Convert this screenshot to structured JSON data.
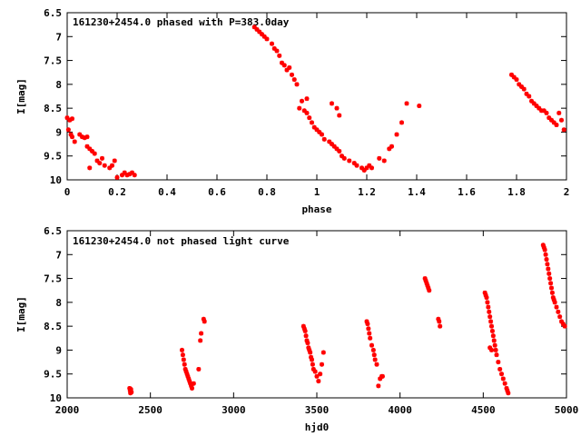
{
  "chart_data": [
    {
      "type": "scatter",
      "title": "161230+2454.0 phased with P=383.0day",
      "xlabel": "phase",
      "ylabel": "I[mag]",
      "xlim": [
        0,
        2
      ],
      "ylim": [
        6.5,
        10
      ],
      "y_inverted": true,
      "grid": false,
      "color": "#ff0000",
      "xticks": [
        "0",
        "0.2",
        "0.4",
        "0.6",
        "0.8",
        "1",
        "1.2",
        "1.4",
        "1.6",
        "1.8",
        "2"
      ],
      "yticks": [
        "6.5",
        "7",
        "7.5",
        "8",
        "8.5",
        "9",
        "9.5",
        "10"
      ],
      "series": [
        {
          "x": [
            0.0,
            0.01,
            0.02,
            0.005,
            0.015,
            0.02,
            0.03,
            0.05,
            0.06,
            0.07,
            0.08,
            0.09,
            0.1,
            0.11,
            0.12,
            0.09,
            0.13,
            0.15,
            0.17,
            0.19,
            0.2,
            0.22,
            0.23,
            0.24,
            0.25,
            0.26,
            0.27,
            0.08,
            0.14,
            0.18,
            0.75,
            0.76,
            0.77,
            0.78,
            0.79,
            0.8,
            0.82,
            0.83,
            0.84,
            0.85,
            0.86,
            0.87,
            0.88,
            0.89,
            0.9,
            0.91,
            0.92,
            0.93,
            0.95,
            0.96,
            0.97,
            0.98,
            0.99,
            1.0,
            1.01,
            1.02,
            1.03,
            1.05,
            1.06,
            1.07,
            1.08,
            1.09,
            1.1,
            1.11,
            1.13,
            1.15,
            1.16,
            1.18,
            1.19,
            1.2,
            1.21,
            1.22,
            1.25,
            1.27,
            1.29,
            1.3,
            1.32,
            1.34,
            1.36,
            1.41,
            0.94,
            0.96,
            1.06,
            1.08,
            1.09,
            1.78,
            1.79,
            1.8,
            1.81,
            1.82,
            1.83,
            1.84,
            1.85,
            1.86,
            1.87,
            1.88,
            1.89,
            1.9,
            1.91,
            1.92,
            1.93,
            1.94,
            1.95,
            1.96,
            1.97,
            1.98,
            1.99
          ],
          "y": [
            8.7,
            8.75,
            8.72,
            8.95,
            9.05,
            9.1,
            9.2,
            9.05,
            9.1,
            9.12,
            9.3,
            9.35,
            9.4,
            9.45,
            9.6,
            9.75,
            9.65,
            9.7,
            9.75,
            9.6,
            9.95,
            9.9,
            9.85,
            9.9,
            9.88,
            9.85,
            9.9,
            9.1,
            9.55,
            9.7,
            6.8,
            6.85,
            6.9,
            6.95,
            7.0,
            7.05,
            7.15,
            7.25,
            7.3,
            7.4,
            7.55,
            7.6,
            7.7,
            7.65,
            7.8,
            7.9,
            8.0,
            8.5,
            8.55,
            8.6,
            8.7,
            8.8,
            8.9,
            8.95,
            9.0,
            9.05,
            9.15,
            9.2,
            9.25,
            9.3,
            9.35,
            9.4,
            9.5,
            9.55,
            9.6,
            9.65,
            9.7,
            9.75,
            9.8,
            9.75,
            9.7,
            9.75,
            9.55,
            9.6,
            9.35,
            9.3,
            9.05,
            8.8,
            8.4,
            8.45,
            8.35,
            8.3,
            8.4,
            8.5,
            8.65,
            7.8,
            7.85,
            7.9,
            8.0,
            8.05,
            8.1,
            8.2,
            8.25,
            8.35,
            8.4,
            8.45,
            8.5,
            8.55,
            8.55,
            8.6,
            8.7,
            8.75,
            8.8,
            8.85,
            8.6,
            8.75,
            8.95
          ]
        }
      ]
    },
    {
      "type": "scatter",
      "title": "161230+2454.0 not phased light curve",
      "xlabel": "hjd0",
      "ylabel": "I[mag]",
      "xlim": [
        2000,
        5000
      ],
      "ylim": [
        6.5,
        10
      ],
      "y_inverted": true,
      "grid": false,
      "color": "#ff0000",
      "xticks": [
        "2000",
        "2500",
        "3000",
        "3500",
        "4000",
        "4500",
        "5000"
      ],
      "yticks": [
        "6.5",
        "7",
        "7.5",
        "8",
        "8.5",
        "9",
        "9.5",
        "10"
      ],
      "series": [
        {
          "x": [
            2375,
            2378,
            2380,
            2383,
            2386,
            2690,
            2695,
            2700,
            2705,
            2710,
            2715,
            2720,
            2725,
            2730,
            2735,
            2740,
            2745,
            2750,
            2760,
            2790,
            2800,
            2805,
            2820,
            2825,
            3420,
            3425,
            3430,
            3435,
            3440,
            3445,
            3450,
            3455,
            3460,
            3465,
            3470,
            3475,
            3480,
            3490,
            3500,
            3510,
            3520,
            3530,
            3540,
            3800,
            3805,
            3810,
            3815,
            3820,
            3830,
            3840,
            3845,
            3850,
            3860,
            3870,
            3880,
            3890,
            3895,
            4150,
            4155,
            4160,
            4165,
            4170,
            4175,
            4230,
            4235,
            4240,
            4510,
            4515,
            4520,
            4525,
            4530,
            4535,
            4540,
            4545,
            4550,
            4555,
            4560,
            4565,
            4570,
            4575,
            4580,
            4590,
            4600,
            4610,
            4620,
            4630,
            4640,
            4645,
            4650,
            4540,
            4550,
            4860,
            4865,
            4870,
            4875,
            4880,
            4885,
            4890,
            4895,
            4900,
            4905,
            4910,
            4915,
            4920,
            4925,
            4930,
            4940,
            4950,
            4960,
            4970,
            4980,
            4990
          ],
          "y": [
            9.8,
            9.85,
            9.9,
            9.82,
            9.88,
            9.0,
            9.1,
            9.2,
            9.3,
            9.4,
            9.45,
            9.5,
            9.55,
            9.6,
            9.65,
            9.7,
            9.75,
            9.8,
            9.7,
            9.4,
            8.8,
            8.65,
            8.35,
            8.4,
            8.5,
            8.55,
            8.6,
            8.7,
            8.8,
            8.85,
            8.95,
            9.0,
            9.05,
            9.15,
            9.2,
            9.3,
            9.4,
            9.45,
            9.55,
            9.65,
            9.5,
            9.3,
            9.05,
            8.4,
            8.45,
            8.55,
            8.65,
            8.75,
            8.9,
            9.0,
            9.1,
            9.2,
            9.3,
            9.75,
            9.6,
            9.55,
            9.55,
            7.5,
            7.55,
            7.6,
            7.65,
            7.7,
            7.75,
            8.35,
            8.4,
            8.5,
            7.8,
            7.85,
            7.9,
            8.0,
            8.1,
            8.2,
            8.3,
            8.4,
            8.5,
            8.6,
            8.7,
            8.8,
            8.9,
            9.0,
            9.1,
            9.25,
            9.4,
            9.5,
            9.6,
            9.7,
            9.8,
            9.85,
            9.9,
            8.95,
            9.0,
            6.8,
            6.85,
            6.9,
            7.0,
            7.1,
            7.2,
            7.3,
            7.4,
            7.5,
            7.6,
            7.7,
            7.8,
            7.9,
            7.95,
            8.0,
            8.1,
            8.2,
            8.3,
            8.4,
            8.45,
            8.5
          ]
        }
      ]
    }
  ]
}
